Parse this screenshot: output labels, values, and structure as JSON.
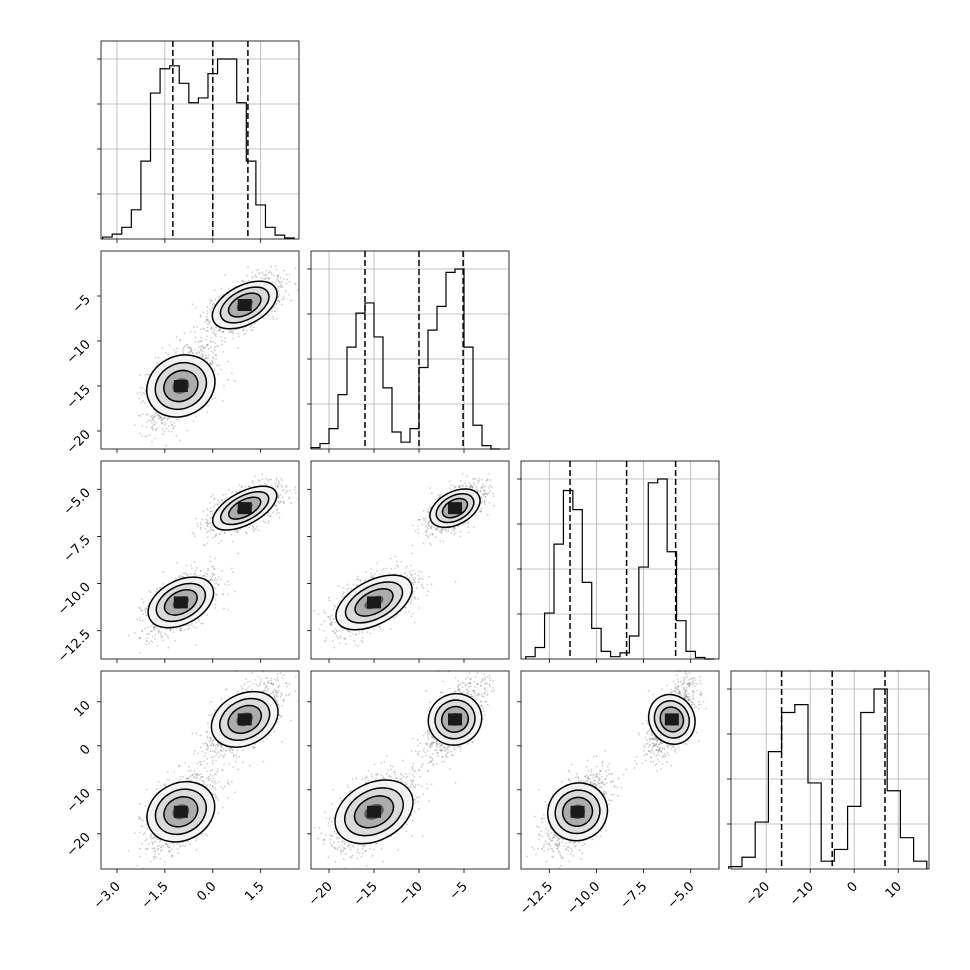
{
  "chart_data": {
    "type": "corner",
    "n_params": 4,
    "params": [
      {
        "range": [
          -3.5,
          2.7
        ],
        "ticks": [
          -3.0,
          -1.5,
          0.0,
          1.5
        ],
        "tick_labels": [
          "−3.0",
          "−1.5",
          "0.0",
          "1.5"
        ],
        "quantiles": [
          -1.25,
          0.0,
          1.1
        ]
      },
      {
        "range": [
          -22,
          0
        ],
        "ticks": [
          -20,
          -15,
          -10,
          -5
        ],
        "tick_labels": [
          "−20",
          "−15",
          "−10",
          "−5"
        ],
        "quantiles": [
          -16.0,
          -10.0,
          -5.1
        ]
      },
      {
        "range": [
          -14,
          -3.5
        ],
        "ticks": [
          -12.5,
          -10.0,
          -7.5,
          -5.0
        ],
        "tick_labels": [
          "−12.5",
          "−10.0",
          "−7.5",
          "−5.0"
        ],
        "quantiles": [
          -11.4,
          -8.4,
          -5.8
        ]
      },
      {
        "range": [
          -28,
          17
        ],
        "ticks": [
          -20,
          -10,
          0,
          10
        ],
        "tick_labels": [
          "−20",
          "−10",
          "0",
          "10"
        ],
        "quantiles": [
          -16.5,
          -5.0,
          7.0
        ]
      }
    ],
    "histograms": [
      {
        "bins": [
          -3.3,
          -3.0,
          -2.7,
          -2.4,
          -2.1,
          -1.8,
          -1.5,
          -1.2,
          -0.9,
          -0.6,
          -0.3,
          0.0,
          0.3,
          0.6,
          0.9,
          1.2,
          1.5,
          1.8,
          2.1,
          2.4
        ],
        "counts": [
          2,
          5,
          12,
          30,
          80,
          150,
          175,
          178,
          160,
          140,
          145,
          170,
          185,
          185,
          140,
          80,
          35,
          12,
          4,
          1
        ]
      },
      {
        "bins": [
          -21.5,
          -20.5,
          -19.5,
          -18.5,
          -17.5,
          -16.5,
          -15.5,
          -14.5,
          -13.5,
          -12.5,
          -11.5,
          -10.5,
          -9.5,
          -8.5,
          -7.5,
          -6.5,
          -5.5,
          -4.5,
          -3.5,
          -2.5,
          -1.5
        ],
        "counts": [
          2,
          8,
          30,
          80,
          150,
          200,
          215,
          165,
          90,
          25,
          10,
          30,
          120,
          175,
          210,
          260,
          265,
          150,
          35,
          5,
          0
        ]
      },
      {
        "bins": [
          -13.5,
          -13.0,
          -12.5,
          -12.0,
          -11.5,
          -11.0,
          -10.5,
          -10.0,
          -9.5,
          -9.0,
          -8.5,
          -8.0,
          -7.5,
          -7.0,
          -6.5,
          -6.0,
          -5.5,
          -5.0,
          -4.5,
          -4.0
        ],
        "counts": [
          3,
          15,
          60,
          150,
          220,
          195,
          100,
          40,
          10,
          3,
          8,
          30,
          120,
          230,
          235,
          140,
          50,
          10,
          2,
          0
        ]
      },
      {
        "bins": [
          -27,
          -24,
          -21,
          -18,
          -15,
          -12,
          -9,
          -6,
          -3,
          0,
          3,
          6,
          9,
          12,
          15
        ],
        "counts": [
          3,
          15,
          60,
          150,
          200,
          210,
          110,
          10,
          25,
          80,
          200,
          230,
          100,
          40,
          10
        ]
      }
    ],
    "modes": [
      {
        "weight": 0.5,
        "mean": [
          -1.0,
          -15.0,
          -11.0,
          -15.0
        ],
        "sd": [
          0.55,
          2.3,
          0.8,
          4.5
        ]
      },
      {
        "weight": 0.5,
        "mean": [
          1.0,
          -6.0,
          -6.0,
          6.0
        ],
        "sd": [
          0.55,
          1.5,
          0.6,
          4.0
        ]
      }
    ],
    "grid": true
  }
}
